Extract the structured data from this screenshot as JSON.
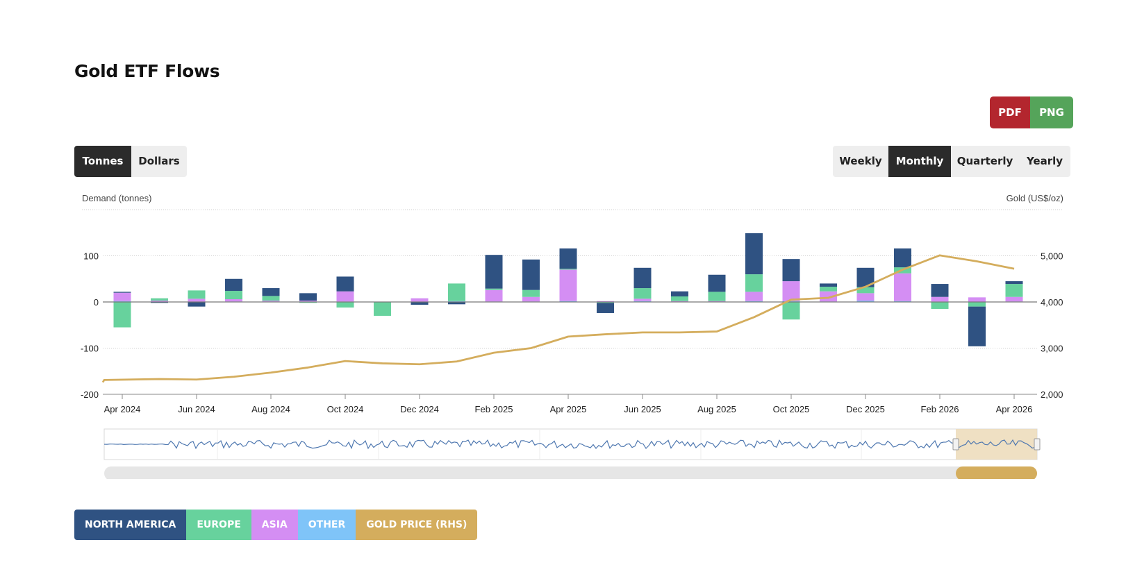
{
  "title": "Gold ETF Flows",
  "export": {
    "pdf_label": "PDF",
    "png_label": "PNG"
  },
  "units": {
    "options": [
      "Tonnes",
      "Dollars"
    ],
    "selected": "Tonnes"
  },
  "periods": {
    "options": [
      "Weekly",
      "Monthly",
      "Quarterly",
      "Yearly"
    ],
    "selected": "Monthly"
  },
  "colors": {
    "north_america": "#2f5282",
    "europe": "#67d29d",
    "asia": "#d48ef3",
    "other": "#7fc4f8",
    "gold_price": "#d4ad5d",
    "active_button": "#2b2b2b",
    "pdf": "#b3262e",
    "png": "#55a45a"
  },
  "legend": [
    {
      "label": "NORTH AMERICA",
      "color": "#2f5282"
    },
    {
      "label": "EUROPE",
      "color": "#67d29d"
    },
    {
      "label": "ASIA",
      "color": "#d48ef3"
    },
    {
      "label": "OTHER",
      "color": "#7fc4f8"
    },
    {
      "label": "GOLD PRICE (RHS)",
      "color": "#d4ad5d"
    }
  ],
  "chart_data": {
    "type": "bar",
    "stacked": true,
    "ylabel": "Demand (tonnes)",
    "y2label": "Gold (US$/oz)",
    "ylim": [
      -200,
      200
    ],
    "y2lim": [
      2000,
      6000
    ],
    "yticks": [
      -200,
      -100,
      0,
      100
    ],
    "y2ticks": [
      2000,
      3000,
      4000,
      5000
    ],
    "grid": true,
    "x_tick_labels": [
      "Apr 2024",
      "Jun 2024",
      "Aug 2024",
      "Oct 2024",
      "Dec 2024",
      "Feb 2025",
      "Apr 2025",
      "Jun 2025",
      "Aug 2025",
      "Oct 2025",
      "Dec 2025",
      "Feb 2026",
      "Apr 2026"
    ],
    "categories": [
      "Apr 2024",
      "May 2024",
      "Jun 2024",
      "Jul 2024",
      "Aug 2024",
      "Sep 2024",
      "Oct 2024",
      "Nov 2024",
      "Dec 2024",
      "Jan 2025",
      "Feb 2025",
      "Mar 2025",
      "Apr 2025",
      "May 2025",
      "Jun 2025",
      "Jul 2025",
      "Aug 2025",
      "Sep 2025",
      "Oct 2025",
      "Nov 2025",
      "Dec 2025",
      "Jan 2026",
      "Feb 2026",
      "Mar 2026",
      "Apr 2026"
    ],
    "series": [
      {
        "name": "NORTH AMERICA",
        "values": [
          2,
          -2,
          -10,
          26,
          17,
          16,
          32,
          0,
          -6,
          -5,
          73,
          66,
          44,
          -22,
          44,
          11,
          37,
          89,
          48,
          7,
          42,
          41,
          28,
          -86,
          6
        ]
      },
      {
        "name": "EUROPE",
        "values": [
          -55,
          5,
          18,
          18,
          10,
          -2,
          -12,
          -30,
          0,
          38,
          3,
          15,
          2,
          -2,
          23,
          10,
          20,
          38,
          -38,
          10,
          13,
          13,
          -15,
          -10,
          28
        ]
      },
      {
        "name": "ASIA",
        "values": [
          18,
          3,
          7,
          5,
          2,
          2,
          22,
          0,
          8,
          0,
          25,
          10,
          68,
          2,
          5,
          2,
          2,
          20,
          43,
          22,
          16,
          60,
          10,
          10,
          10
        ]
      },
      {
        "name": "OTHER",
        "values": [
          2,
          0,
          0,
          1,
          1,
          1,
          1,
          0,
          0,
          2,
          1,
          1,
          2,
          0,
          2,
          0,
          0,
          2,
          2,
          1,
          3,
          2,
          1,
          0,
          1
        ]
      }
    ],
    "line": {
      "name": "GOLD PRICE (RHS)",
      "values": [
        2310,
        2330,
        2320,
        2380,
        2470,
        2580,
        2720,
        2670,
        2650,
        2710,
        2900,
        3000,
        3250,
        3300,
        3340,
        3340,
        3360,
        3670,
        4050,
        4090,
        4330,
        4700,
        5010,
        4880,
        4720
      ]
    }
  }
}
